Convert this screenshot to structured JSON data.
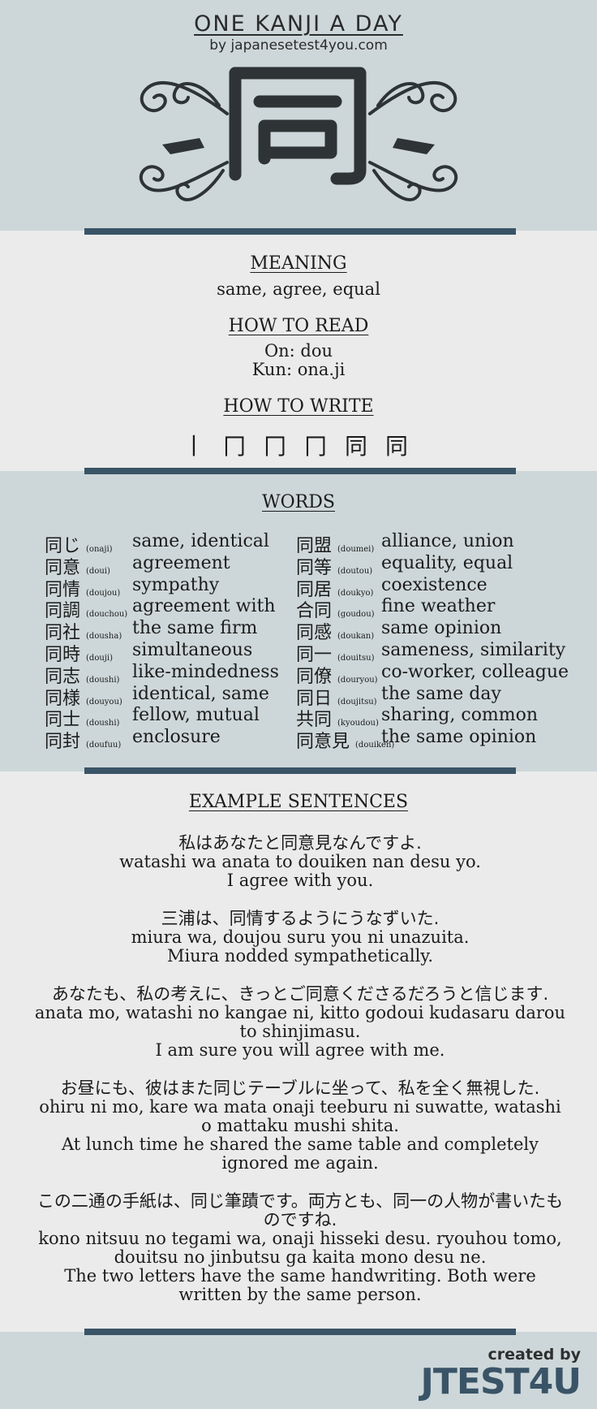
{
  "header": {
    "title": "ONE KANJI A DAY",
    "byline": "by japanesetest4you.com",
    "kanji": "同"
  },
  "meaning": {
    "heading": "MEANING",
    "text": "same, agree, equal"
  },
  "reading": {
    "heading": "HOW TO READ",
    "on": "On: dou",
    "kun": "Kun: ona.ji"
  },
  "writing": {
    "heading": "HOW TO WRITE",
    "strokes": [
      "丨",
      "冂",
      "冂",
      "冂",
      "同",
      "同"
    ]
  },
  "words": {
    "heading": "WORDS",
    "left": [
      {
        "kanji": "同じ",
        "reading": "(onaji)",
        "meaning": "same, identical"
      },
      {
        "kanji": "同意",
        "reading": "(doui)",
        "meaning": "agreement"
      },
      {
        "kanji": "同情",
        "reading": "(doujou)",
        "meaning": "sympathy"
      },
      {
        "kanji": "同調",
        "reading": "(douchou)",
        "meaning": "agreement with"
      },
      {
        "kanji": "同社",
        "reading": "(dousha)",
        "meaning": "the same firm"
      },
      {
        "kanji": "同時",
        "reading": "(douji)",
        "meaning": "simultaneous"
      },
      {
        "kanji": "同志",
        "reading": "(doushi)",
        "meaning": "like-mindedness"
      },
      {
        "kanji": "同様",
        "reading": "(douyou)",
        "meaning": "identical, same"
      },
      {
        "kanji": "同士",
        "reading": "(doushi)",
        "meaning": "fellow, mutual"
      },
      {
        "kanji": "同封",
        "reading": "(doufuu)",
        "meaning": "enclosure"
      }
    ],
    "right": [
      {
        "kanji": "同盟",
        "reading": "(doumei)",
        "meaning": "alliance, union"
      },
      {
        "kanji": "同等",
        "reading": "(doutou)",
        "meaning": "equality, equal"
      },
      {
        "kanji": "同居",
        "reading": "(doukyo)",
        "meaning": "coexistence"
      },
      {
        "kanji": "合同",
        "reading": "(goudou)",
        "meaning": "fine weather"
      },
      {
        "kanji": "同感",
        "reading": "(doukan)",
        "meaning": "same opinion"
      },
      {
        "kanji": "同一",
        "reading": "(douitsu)",
        "meaning": "sameness, similarity"
      },
      {
        "kanji": "同僚",
        "reading": "(douryou)",
        "meaning": "co-worker, colleague"
      },
      {
        "kanji": "同日",
        "reading": "(doujitsu)",
        "meaning": "the same day"
      },
      {
        "kanji": "共同",
        "reading": "(kyoudou)",
        "meaning": "sharing, common"
      },
      {
        "kanji": "同意見",
        "reading": "(douiken)",
        "meaning": "the same opinion"
      }
    ]
  },
  "examples": {
    "heading": "EXAMPLE SENTENCES",
    "items": [
      {
        "jp": "私はあなたと同意見なんですよ.",
        "romaji": "watashi wa anata to douiken nan desu yo.",
        "en": "I agree with you."
      },
      {
        "jp": "三浦は、同情するようにうなずいた.",
        "romaji": "miura wa, doujou suru you ni unazuita.",
        "en": "Miura nodded sympathetically."
      },
      {
        "jp": "あなたも、私の考えに、きっとご同意くださるだろうと信じます.",
        "romaji": "anata mo, watashi no kangae ni, kitto godoui kudasaru darou to shinjimasu.",
        "en": "I am sure you will agree with me."
      },
      {
        "jp": "お昼にも、彼はまた同じテーブルに坐って、私を全く無視した.",
        "romaji": "ohiru ni mo, kare wa mata onaji teeburu ni suwatte, watashi o mattaku mushi shita.",
        "en": "At lunch time he shared the same table and completely ignored me again."
      },
      {
        "jp": "この二通の手紙は、同じ筆蹟です。両方とも、同一の人物が書いたものですね.",
        "romaji": "kono nitsuu no tegami wa, onaji hisseki desu. ryouhou tomo, douitsu no jinbutsu ga kaita mono desu ne.",
        "en": "The two letters have the same handwriting. Both were written by the same person."
      }
    ]
  },
  "footer": {
    "created_by": "created by",
    "brand": "JTEST4U"
  },
  "colors": {
    "band": "#cdd7d9",
    "body": "#ebebeb",
    "rule": "#3a5467",
    "kanji": "#2e3335"
  }
}
